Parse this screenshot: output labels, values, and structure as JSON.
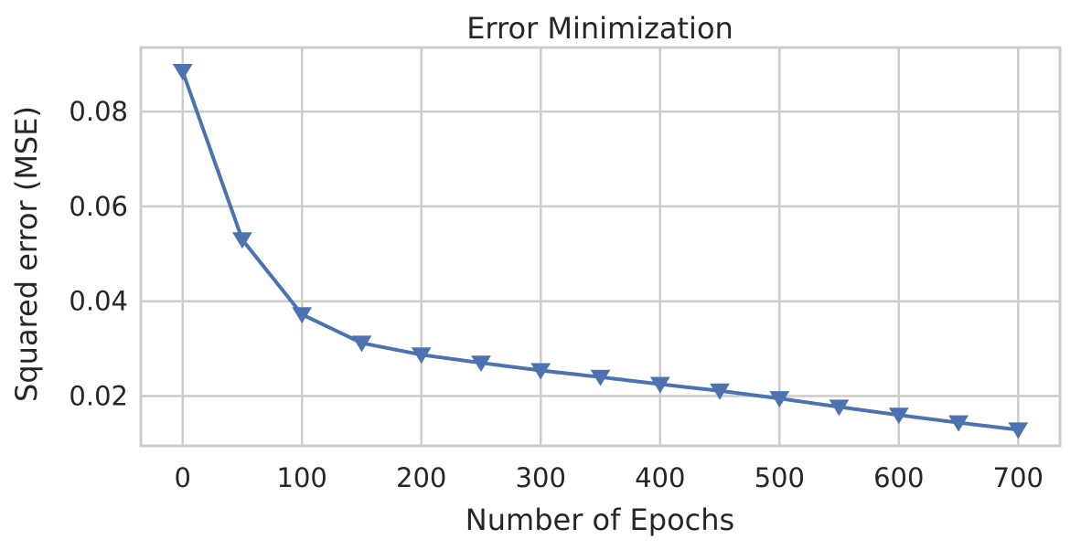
{
  "chart_data": {
    "type": "line",
    "title": "Error Minimization",
    "xlabel": "Number of Epochs",
    "ylabel": "Squared error (MSE)",
    "xlim": [
      -35,
      735
    ],
    "ylim": [
      0.0095,
      0.0935
    ],
    "xticks": [
      0,
      100,
      200,
      300,
      400,
      500,
      600,
      700
    ],
    "yticks": [
      0.02,
      0.04,
      0.06,
      0.08
    ],
    "xtick_labels": [
      "0",
      "100",
      "200",
      "300",
      "400",
      "500",
      "600",
      "700"
    ],
    "ytick_labels": [
      "0.02",
      "0.04",
      "0.06",
      "0.08"
    ],
    "grid": true,
    "series": [
      {
        "color": "#4c72b0",
        "marker": "triangle-down",
        "x": [
          0,
          50,
          100,
          150,
          200,
          250,
          300,
          350,
          400,
          450,
          500,
          550,
          600,
          650,
          700
        ],
        "y": [
          0.0885,
          0.053,
          0.0372,
          0.0312,
          0.0287,
          0.027,
          0.0254,
          0.024,
          0.0225,
          0.0211,
          0.0195,
          0.0177,
          0.016,
          0.0144,
          0.0129
        ]
      }
    ]
  }
}
